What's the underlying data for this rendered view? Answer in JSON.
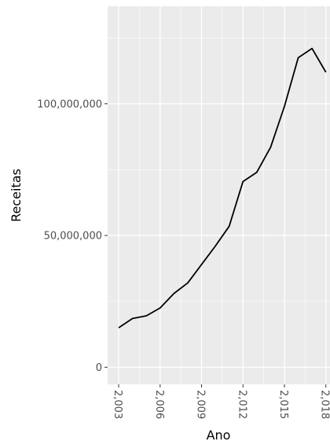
{
  "chart_data": {
    "type": "line",
    "title": "",
    "xlabel": "Ano",
    "ylabel": "Receitas",
    "x": [
      2003,
      2004,
      2005,
      2006,
      2007,
      2008,
      2009,
      2010,
      2011,
      2012,
      2013,
      2014,
      2015,
      2016,
      2017,
      2018
    ],
    "series": [
      {
        "values": [
          15000000,
          18500000,
          19500000,
          22500000,
          28000000,
          32000000,
          39000000,
          46000000,
          53500000,
          70500000,
          74000000,
          83500000,
          99000000,
          117500000,
          121000000,
          112000000
        ]
      }
    ],
    "xlim": [
      2002.2,
      2018.3
    ],
    "ylim": [
      -6500000,
      137000000
    ],
    "x_ticks": [
      2003,
      2006,
      2009,
      2012,
      2015,
      2018
    ],
    "x_tick_labels": [
      "2,003",
      "2,006",
      "2,009",
      "2,012",
      "2,015",
      "2,018"
    ],
    "y_ticks": [
      0,
      50000000,
      100000000
    ],
    "y_tick_labels": [
      "0",
      "50,000,000",
      "100,000,000"
    ],
    "grid": true,
    "legend": "none",
    "colors": {
      "panel_background": "#ebebeb",
      "grid_major": "#ffffff",
      "line": "#000000",
      "tick_text": "#4d4d4d",
      "axis_title": "#000000"
    }
  }
}
